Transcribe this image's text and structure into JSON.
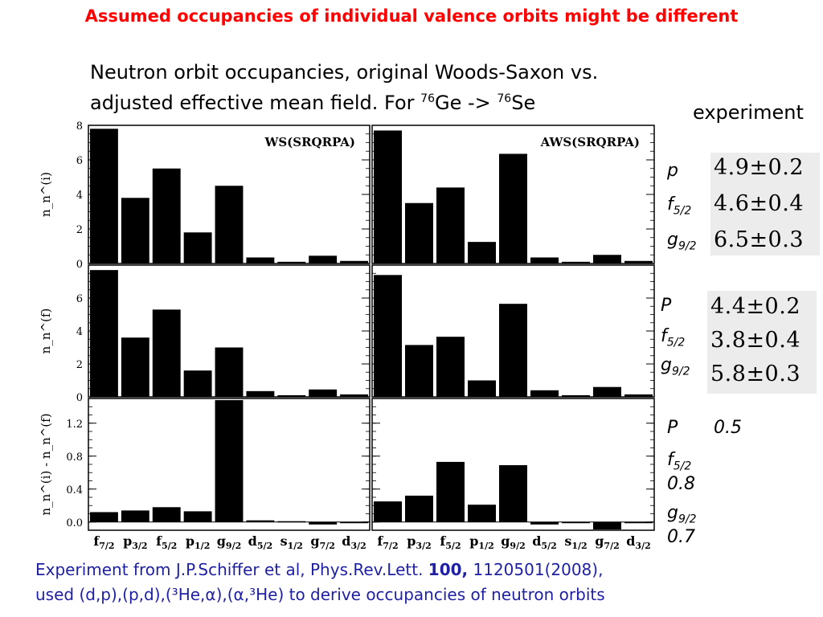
{
  "title": "Assumed occupancies of individual valence orbits might be different",
  "subtitle": {
    "line1": "Neutron orbit occupancies, original Woods-Saxon vs.",
    "line2_pre": "adjusted effective mean field. For ",
    "sup1": "76",
    "mid": "Ge -> ",
    "sup2": "76",
    "end": "Se"
  },
  "experiment": {
    "heading": "experiment",
    "groups": [
      {
        "rows": [
          {
            "label": "p",
            "sub": "",
            "value": "4.9±0.2"
          },
          {
            "label": "f",
            "sub": "5/2",
            "value": "4.6±0.4"
          },
          {
            "label": "g",
            "sub": "9/2",
            "value": "6.5±0.3"
          }
        ]
      },
      {
        "rows": [
          {
            "label": "P",
            "sub": "",
            "value": "4.4±0.2"
          },
          {
            "label": "f",
            "sub": "5/2",
            "value": "3.8±0.4"
          },
          {
            "label": "g",
            "sub": "9/2",
            "value": "5.8±0.3"
          }
        ]
      },
      {
        "rows": [
          {
            "label": "P",
            "sub": "",
            "value": "0.5"
          },
          {
            "label": "f",
            "sub": "5/2",
            "value": "0.8"
          },
          {
            "label": "g",
            "sub": "9/2",
            "value": "0.7"
          }
        ]
      }
    ]
  },
  "footer": {
    "line1_pre": "Experiment from J.P.Schiffer et al, Phys.Rev.Lett. ",
    "line1_bold": "100,",
    "line1_post": " 1120501(2008),",
    "line2": "used (d,p),(p,d),(³He,α),(α,³He) to derive occupancies of neutron orbits"
  },
  "chart_data": {
    "type": "bar",
    "categories": [
      {
        "base": "f",
        "sub": "7/2"
      },
      {
        "base": "p",
        "sub": "3/2"
      },
      {
        "base": "f",
        "sub": "5/2"
      },
      {
        "base": "p",
        "sub": "1/2"
      },
      {
        "base": "g",
        "sub": "9/2"
      },
      {
        "base": "d",
        "sub": "5/2"
      },
      {
        "base": "s",
        "sub": "1/2"
      },
      {
        "base": "g",
        "sub": "7/2"
      },
      {
        "base": "d",
        "sub": "3/2"
      }
    ],
    "panel_labels": [
      "WS(SRQRPA)",
      "AWS(SRQRPA)"
    ],
    "rows": [
      {
        "ylabel": "n_n^(i)",
        "ylim": [
          0,
          8
        ],
        "ticks": [
          "0",
          "2",
          "4",
          "6",
          "8"
        ],
        "tickvals": [
          0,
          2,
          4,
          6,
          8
        ],
        "series": [
          {
            "values": [
              7.8,
              3.8,
              5.5,
              1.8,
              4.5,
              0.35,
              0.1,
              0.45,
              0.15
            ]
          },
          {
            "values": [
              7.7,
              3.5,
              4.4,
              1.25,
              6.35,
              0.35,
              0.1,
              0.5,
              0.15
            ]
          }
        ]
      },
      {
        "ylabel": "n_n^(f)",
        "ylim": [
          0,
          8
        ],
        "ticks": [
          "0",
          "2",
          "4",
          "6"
        ],
        "tickvals": [
          0,
          2,
          4,
          6
        ],
        "series": [
          {
            "values": [
              7.7,
              3.6,
              5.3,
              1.6,
              3.0,
              0.35,
              0.1,
              0.45,
              0.15
            ]
          },
          {
            "values": [
              7.4,
              3.15,
              3.65,
              1.0,
              5.65,
              0.4,
              0.1,
              0.6,
              0.15
            ]
          }
        ]
      },
      {
        "ylabel": "n_n^(i) - n_n^(f)",
        "ylim": [
          -0.1,
          1.5
        ],
        "ticks": [
          "0.0",
          "0.4",
          "0.8",
          "1.2"
        ],
        "tickvals": [
          0,
          0.4,
          0.8,
          1.2
        ],
        "series": [
          {
            "values": [
              0.12,
              0.14,
              0.18,
              0.13,
              1.48,
              0.02,
              0.01,
              -0.03,
              -0.01
            ]
          },
          {
            "values": [
              0.25,
              0.32,
              0.73,
              0.21,
              0.69,
              -0.03,
              0.0,
              -0.09,
              -0.01
            ]
          }
        ]
      }
    ]
  }
}
